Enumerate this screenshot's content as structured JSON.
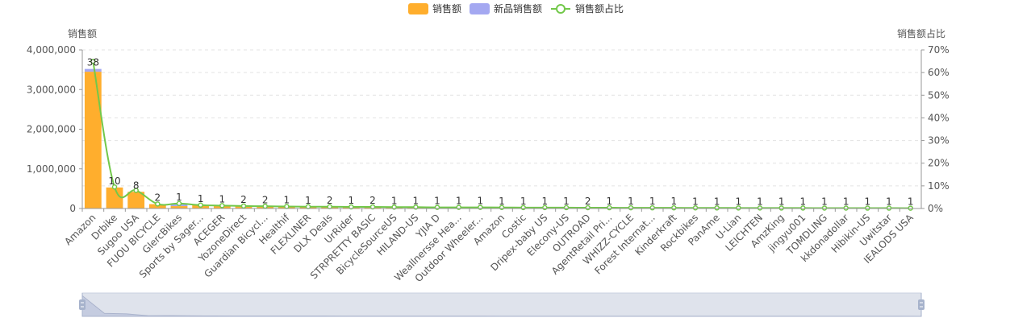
{
  "chart_data": {
    "type": "bar",
    "legend": {
      "placement": "top-center",
      "items": [
        {
          "key": "sales",
          "label": "销售额",
          "color": "#FFAE2D"
        },
        {
          "key": "new",
          "label": "新品销售额",
          "color": "#A4A8F1"
        },
        {
          "key": "share",
          "label": "销售额占比",
          "color": "#72C84A"
        }
      ]
    },
    "ylabel": "销售额",
    "y2label": "销售额占比",
    "ylim": [
      0,
      4000000
    ],
    "y_ticks": [
      "0",
      "1,000,000",
      "2,000,000",
      "3,000,000",
      "4,000,000"
    ],
    "y2lim": [
      0,
      70
    ],
    "y2_ticks": [
      "0%",
      "10%",
      "20%",
      "30%",
      "40%",
      "50%",
      "60%",
      "70%"
    ],
    "grid": true,
    "categories": [
      "Amazon",
      "Drbike",
      "Sugoo USA",
      "FUOU BICYCLE",
      "GlercBikes",
      "Sports by Sager...",
      "ACEGER",
      "YozoneDirect",
      "Guardian Bicycl...",
      "Healthif",
      "FLEXLINER",
      "DLX Deals",
      "UrRider",
      "STRPRETTY BASIC",
      "BicycleSourceUS",
      "HILAND-US",
      "YJIA D",
      "Weallnersse Hea...",
      "Outdoor Wheeler...",
      "Amazon",
      "Costic",
      "Dripex-baby US",
      "Elecony-US",
      "OUTROAD",
      "AgentRetail Pri...",
      "WHIZZ-CYCLE",
      "Forest Internat...",
      "Kinderkraft",
      "Rockbikes",
      "PanAme",
      "U-Lian",
      "LEICHTEN",
      "AmzKing",
      "jingyu001",
      "TOMDLING",
      "kkdonadollar",
      "Hibikin-US",
      "Uwitstar",
      "IEALODS USA"
    ],
    "series": [
      {
        "name": "销售额",
        "values": [
          3450000,
          530000,
          420000,
          110000,
          60000,
          85000,
          72000,
          60000,
          55000,
          48000,
          42000,
          45000,
          40000,
          38000,
          35000,
          32000,
          30000,
          28000,
          26000,
          25000,
          23000,
          22000,
          21000,
          20000,
          19000,
          18000,
          17000,
          16000,
          15000,
          14000,
          13000,
          12000,
          11500,
          11000,
          10500,
          10000,
          9500,
          9000,
          8500
        ]
      },
      {
        "name": "新品销售额",
        "values": [
          70000,
          0,
          0,
          0,
          60000,
          0,
          0,
          0,
          0,
          0,
          0,
          0,
          0,
          0,
          0,
          0,
          0,
          0,
          0,
          0,
          0,
          0,
          0,
          0,
          0,
          0,
          0,
          0,
          0,
          0,
          0,
          0,
          0,
          0,
          0,
          0,
          0,
          0,
          0
        ]
      },
      {
        "name": "销售额占比",
        "axis": "right",
        "values": [
          65,
          9.5,
          8.0,
          2.0,
          2.2,
          1.5,
          1.3,
          1.1,
          1.0,
          0.9,
          0.8,
          0.8,
          0.7,
          0.7,
          0.6,
          0.6,
          0.5,
          0.5,
          0.5,
          0.45,
          0.42,
          0.4,
          0.38,
          0.36,
          0.34,
          0.32,
          0.3,
          0.29,
          0.27,
          0.25,
          0.24,
          0.22,
          0.21,
          0.2,
          0.19,
          0.18,
          0.17,
          0.16,
          0.15
        ]
      }
    ],
    "bar_labels": [
      "38",
      "10",
      "8",
      "2",
      "1",
      "1",
      "1",
      "2",
      "2",
      "1",
      "1",
      "2",
      "1",
      "2",
      "1",
      "1",
      "1",
      "1",
      "1",
      "1",
      "1",
      "1",
      "1",
      "2",
      "1",
      "1",
      "1",
      "1",
      "1",
      "1",
      "1",
      "1",
      "1",
      "1",
      "1",
      "1",
      "1",
      "1",
      "1"
    ]
  },
  "data_zoom": {
    "range_start_percent": 0,
    "range_end_percent": 100
  }
}
